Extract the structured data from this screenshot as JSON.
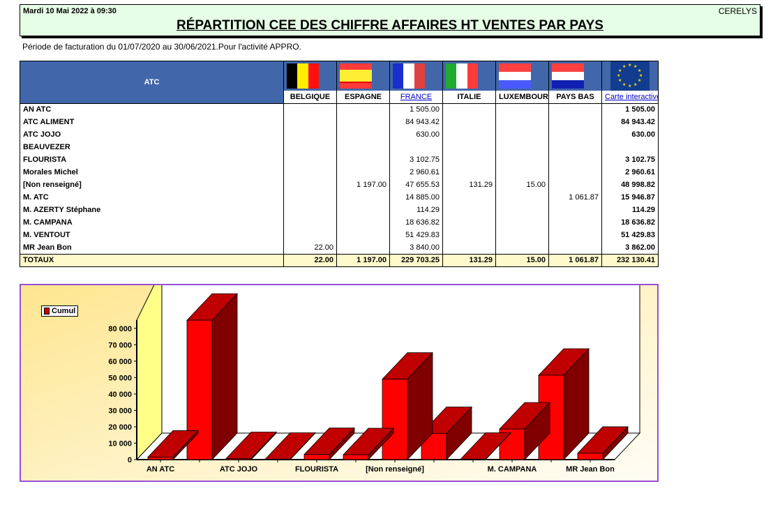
{
  "header": {
    "date": "Mardi 10 Mai 2022 à 09:30",
    "company": "CERELYS",
    "title": "RÉPARTITION CEE DES CHIFFRE AFFAIRES HT VENTES PAR PAYS"
  },
  "subtitle": "Période de facturation du 01/07/2020 au 30/06/2021.Pour l'activité APPRO.",
  "table": {
    "row_header": "ATC",
    "columns": [
      {
        "label": "BELGIQUE",
        "flag": "belgium-flag-icon",
        "link": false
      },
      {
        "label": "ESPAGNE",
        "flag": "spain-flag-icon",
        "link": false
      },
      {
        "label": "FRANCE",
        "flag": "france-flag-icon",
        "link": true
      },
      {
        "label": "ITALIE",
        "flag": "italy-flag-icon",
        "link": false
      },
      {
        "label": "LUXEMBOURG",
        "flag": "luxembourg-flag-icon",
        "link": false
      },
      {
        "label": "PAYS BAS",
        "flag": "netherlands-flag-icon",
        "link": false
      },
      {
        "label": "Carte interactive",
        "flag": "eu-flag-icon",
        "link": true
      }
    ],
    "rows": [
      {
        "name": "AN ATC",
        "values": [
          "",
          "",
          "1 505.00",
          "",
          "",
          "",
          "1 505.00"
        ]
      },
      {
        "name": "ATC ALIMENT",
        "values": [
          "",
          "",
          "84 943.42",
          "",
          "",
          "",
          "84 943.42"
        ]
      },
      {
        "name": "ATC JOJO",
        "values": [
          "",
          "",
          "630.00",
          "",
          "",
          "",
          "630.00"
        ]
      },
      {
        "name": "BEAUVEZER",
        "values": [
          "",
          "",
          "",
          "",
          "",
          "",
          ""
        ]
      },
      {
        "name": "FLOURISTA",
        "values": [
          "",
          "",
          "3 102.75",
          "",
          "",
          "",
          "3 102.75"
        ]
      },
      {
        "name": "Morales Michel",
        "values": [
          "",
          "",
          "2 960.61",
          "",
          "",
          "",
          "2 960.61"
        ]
      },
      {
        "name": "[Non renseigné]",
        "values": [
          "",
          "1 197.00",
          "47 655.53",
          "131.29",
          "15.00",
          "",
          "48 998.82"
        ]
      },
      {
        "name": "M. ATC",
        "values": [
          "",
          "",
          "14 885.00",
          "",
          "",
          "1 061.87",
          "15 946.87"
        ]
      },
      {
        "name": "M. AZERTY Stéphane",
        "values": [
          "",
          "",
          "114.29",
          "",
          "",
          "",
          "114.29"
        ]
      },
      {
        "name": "M. CAMPANA",
        "values": [
          "",
          "",
          "18 636.82",
          "",
          "",
          "",
          "18 636.82"
        ]
      },
      {
        "name": "M. VENTOUT",
        "values": [
          "",
          "",
          "51 429.83",
          "",
          "",
          "",
          "51 429.83"
        ]
      },
      {
        "name": "MR Jean Bon",
        "values": [
          "22.00",
          "",
          "3 840.00",
          "",
          "",
          "",
          "3 862.00"
        ]
      }
    ],
    "totals": {
      "name": "TOTAUX",
      "values": [
        "22.00",
        "1 197.00",
        "229 703.25",
        "131.29",
        "15.00",
        "1 061.87",
        "232 130.41"
      ]
    }
  },
  "colors": {
    "header_bg": "#e6fde6",
    "table_header_bg": "#4166aa",
    "totals_bg": "#fffacc",
    "bar_front": "#ff0000",
    "bar_top": "#c00000",
    "bar_side": "#800000",
    "chart_border": "#9a4fd6",
    "wall": "#ffff88"
  },
  "chart_data": {
    "type": "bar",
    "title": "",
    "legend": [
      "Cumul"
    ],
    "categories": [
      "AN ATC",
      "ATC ALIMENT",
      "ATC JOJO",
      "BEAUVEZER",
      "FLOURISTA",
      "Morales Michel",
      "[Non renseigné]",
      "M. ATC",
      "M. AZERTY Stéphane",
      "M. CAMPANA",
      "M. VENTOUT",
      "MR Jean Bon"
    ],
    "visible_xtick_labels": [
      "AN ATC",
      "ATC JOJO",
      "FLOURISTA",
      "[Non renseigné]",
      "M. CAMPANA",
      "MR Jean Bon"
    ],
    "series": [
      {
        "name": "Cumul",
        "values": [
          1505.0,
          84943.42,
          630.0,
          0,
          3102.75,
          2960.61,
          48998.82,
          15946.87,
          114.29,
          18636.82,
          51429.83,
          3862.0
        ]
      }
    ],
    "yticks": [
      "0",
      "10 000",
      "20 000",
      "30 000",
      "40 000",
      "50 000",
      "60 000",
      "70 000",
      "80 000"
    ],
    "ylim": [
      0,
      85000
    ],
    "xlabel": "",
    "ylabel": "",
    "style": "3d-bar",
    "legend_position": "top-left"
  }
}
